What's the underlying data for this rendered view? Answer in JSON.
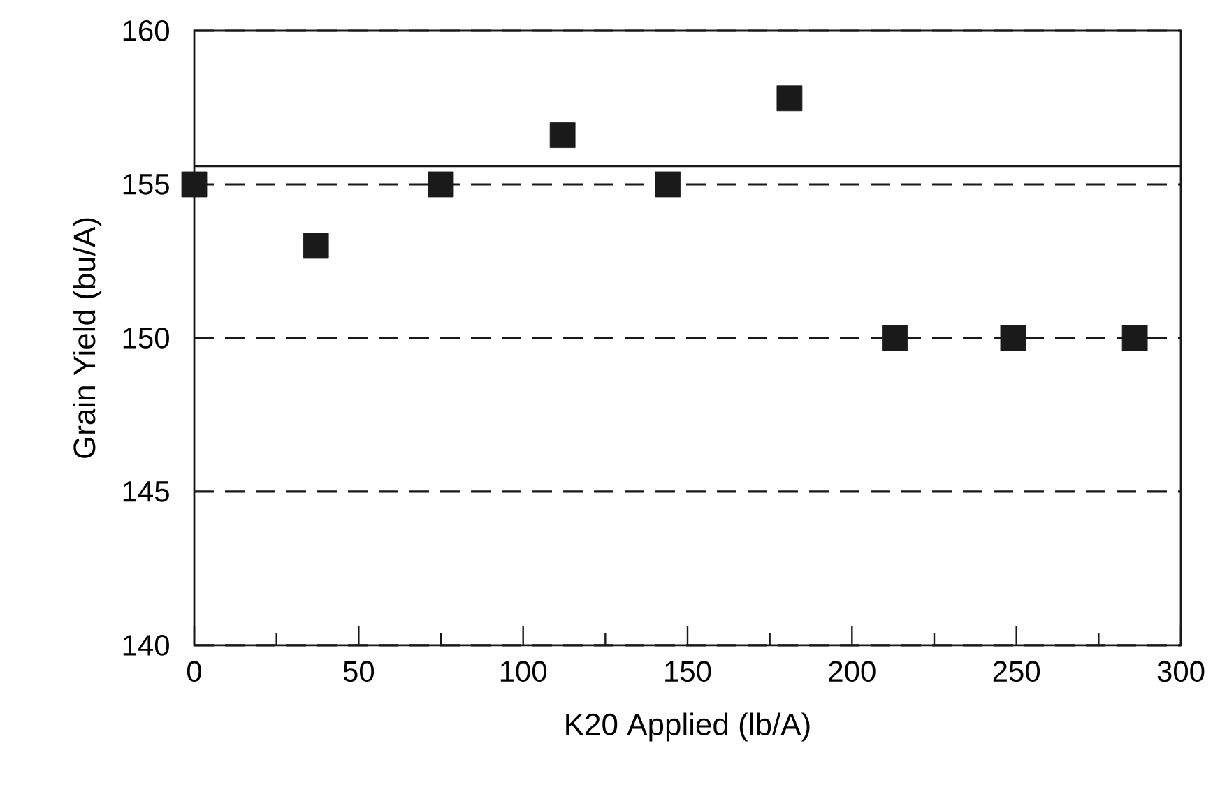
{
  "chart_data": {
    "type": "scatter",
    "xlabel": "K20 Applied (lb/A)",
    "ylabel": "Grain Yield (bu/A)",
    "x": [
      0,
      37,
      75,
      112,
      144,
      181,
      213,
      249,
      286
    ],
    "series": [
      {
        "color": "#1a1a1a",
        "values": [
          155,
          153,
          155,
          156.6,
          155,
          157.8,
          150,
          150,
          150
        ]
      }
    ],
    "marker": "square",
    "xlim": [
      0,
      300
    ],
    "ylim": [
      140,
      160
    ],
    "xticks": [
      0,
      {
        "value": 25,
        "label": null
      },
      50,
      {
        "value": 75,
        "label": null
      },
      100,
      {
        "value": 125,
        "label": null
      },
      150,
      {
        "value": 175,
        "label": null
      },
      200,
      {
        "value": 225,
        "label": null
      },
      250,
      {
        "value": 275,
        "label": null
      },
      300
    ],
    "yticks": [
      140,
      145,
      150,
      155,
      160
    ],
    "grid": "y",
    "ref_lines": [
      {
        "axis": "y",
        "value": 155.6,
        "color": "#1a1a1a",
        "line_style": "solid"
      }
    ]
  }
}
